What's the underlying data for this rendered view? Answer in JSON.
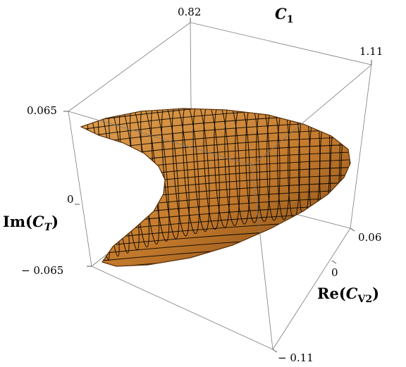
{
  "chart_data": {
    "type": "surface3d",
    "colors": {
      "surface_fill": "#c47a2c",
      "surface_highlight": "#e0a050",
      "surface_shadow": "#7a4512",
      "mesh": "#000000",
      "box": "#7a7a7a"
    },
    "axes": {
      "c1": {
        "label_base": "C",
        "label_sub": "1",
        "range": [
          0.82,
          1.11
        ],
        "ticks": [
          {
            "value": 0.82,
            "label": "0.82"
          },
          {
            "value": 1.11,
            "label": "1.11"
          }
        ]
      },
      "re_cv2": {
        "label_prefix": "Re(",
        "label_base": "C",
        "label_sub": "V2",
        "label_suffix": ")",
        "range": [
          -0.11,
          0.06
        ],
        "ticks": [
          {
            "value": 0.06,
            "label": "0.06"
          },
          {
            "value": 0,
            "label": "0"
          },
          {
            "value": -0.11,
            "label": "− 0.11"
          }
        ]
      },
      "im_ct": {
        "label_prefix": "Im(",
        "label_base": "C",
        "label_sub": "T",
        "label_suffix": ")",
        "range": [
          -0.065,
          0.065
        ],
        "ticks": [
          {
            "value": 0.065,
            "label": "0.065"
          },
          {
            "value": 0,
            "label": "0"
          },
          {
            "value": -0.065,
            "label": "− 0.065"
          }
        ]
      }
    },
    "surface": {
      "description_shape": "crescent",
      "mesh_rings": 26,
      "mesh_verticals": 22
    }
  }
}
